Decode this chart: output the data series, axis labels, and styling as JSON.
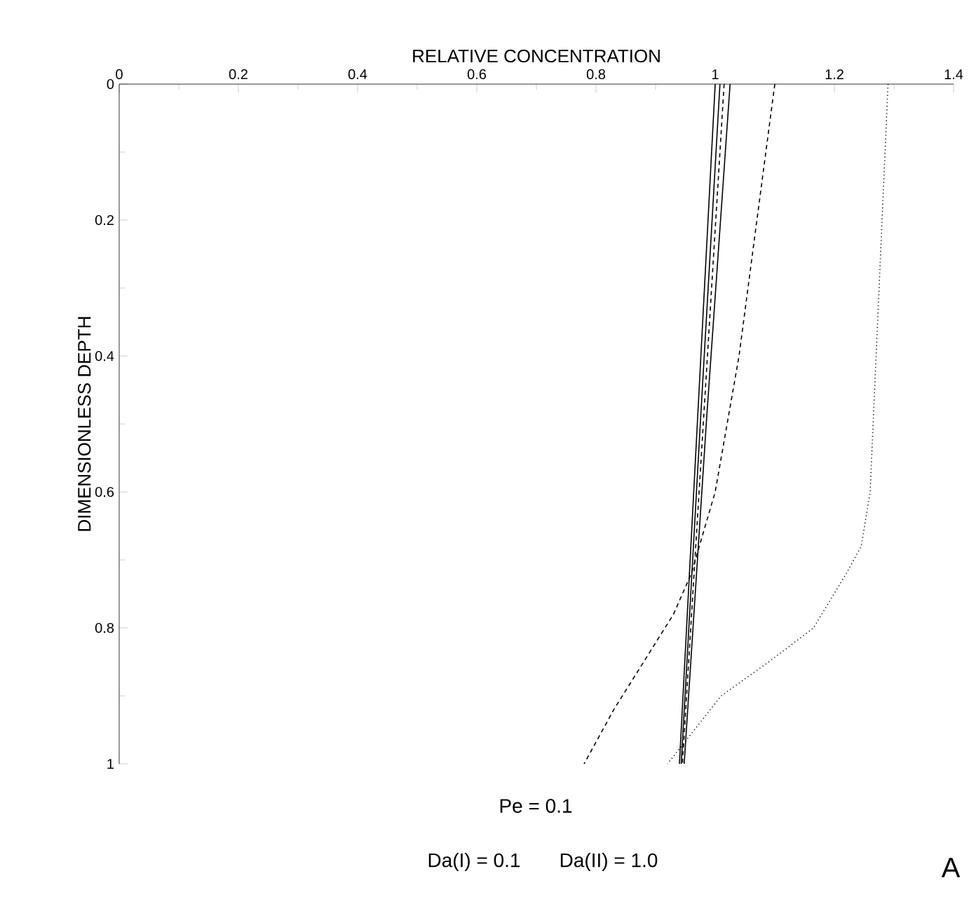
{
  "chart_data": {
    "type": "line",
    "xlabel": "RELATIVE CONCENTRATION",
    "ylabel": "DIMENSIONLESS DEPTH",
    "xlim": [
      0,
      1.4
    ],
    "xticks": [
      0,
      0.2,
      0.4,
      0.6,
      0.8,
      1,
      1.2,
      1.4
    ],
    "ylim": [
      1,
      0
    ],
    "yticks": [
      0,
      0.2,
      0.4,
      0.6,
      0.8,
      1
    ],
    "grid": false,
    "marker": "none",
    "series": [
      {
        "color": "#000000",
        "line_style": "solid",
        "x": [
          1.0,
          0.97,
          0.94
        ],
        "values": [
          0,
          0.5,
          1
        ]
      },
      {
        "color": "#000000",
        "line_style": "solid",
        "x": [
          1.008,
          0.975,
          0.943
        ],
        "values": [
          0,
          0.5,
          1
        ]
      },
      {
        "color": "#000000",
        "line_style": "dashed",
        "x": [
          1.015,
          0.98,
          0.945
        ],
        "values": [
          0,
          0.5,
          1
        ]
      },
      {
        "color": "#000000",
        "line_style": "solid",
        "x": [
          1.025,
          0.985,
          0.948
        ],
        "values": [
          0,
          0.5,
          1
        ]
      },
      {
        "color": "#000000",
        "line_style": "dashed",
        "x": [
          1.1,
          1.07,
          1.04,
          1.0,
          0.96,
          0.93,
          0.88,
          0.83,
          0.78
        ],
        "values": [
          0,
          0.2,
          0.4,
          0.6,
          0.72,
          0.78,
          0.85,
          0.92,
          1.0
        ]
      },
      {
        "color": "#000000",
        "line_style": "dotted",
        "x": [
          1.29,
          1.28,
          1.27,
          1.26,
          1.245,
          1.22,
          1.165,
          1.09,
          1.01,
          0.92
        ],
        "values": [
          0,
          0.2,
          0.4,
          0.6,
          0.68,
          0.72,
          0.8,
          0.85,
          0.9,
          1.0
        ]
      }
    ],
    "annotations": [
      "Pe = 0.1",
      "Da(I) = 0.1",
      "Da(II) = 1.0",
      "A"
    ]
  }
}
